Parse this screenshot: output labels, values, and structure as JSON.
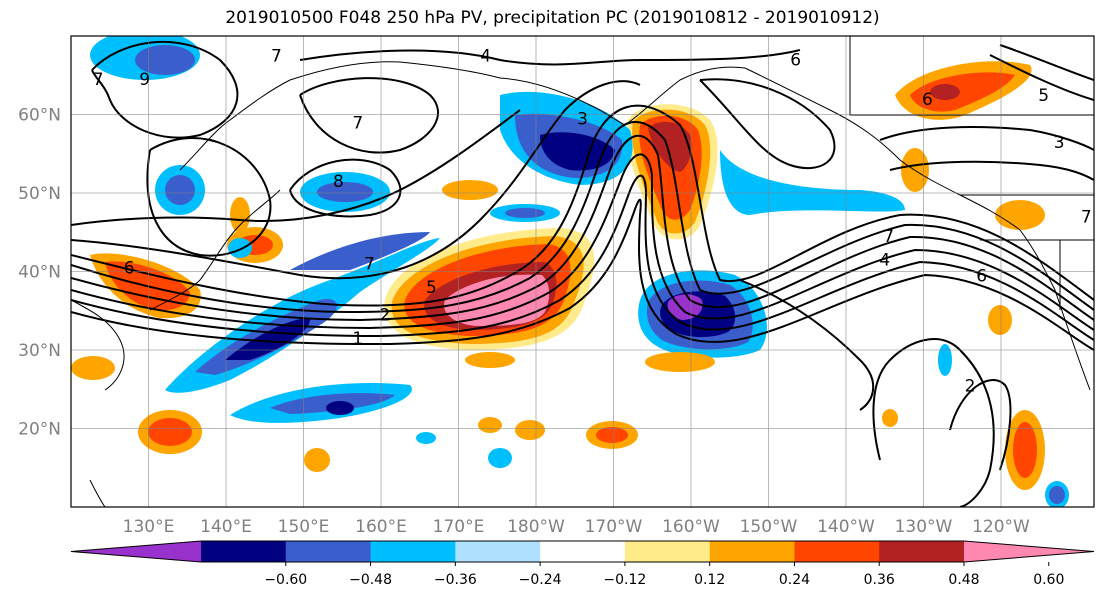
{
  "title": "2019010500 F048 250 hPa PV, precipitation PC (2019010812 - 2019010912)",
  "map": {
    "lon_range": [
      120,
      252
    ],
    "lat_range": [
      10,
      70
    ],
    "lat_ticks": [
      {
        "value": 20,
        "label": "20°N"
      },
      {
        "value": 30,
        "label": "30°N"
      },
      {
        "value": 40,
        "label": "40°N"
      },
      {
        "value": 50,
        "label": "50°N"
      },
      {
        "value": 60,
        "label": "60°N"
      }
    ],
    "lon_ticks": [
      {
        "value": 130,
        "label": "130°E"
      },
      {
        "value": 140,
        "label": "140°E"
      },
      {
        "value": 150,
        "label": "150°E"
      },
      {
        "value": 160,
        "label": "160°E"
      },
      {
        "value": 170,
        "label": "170°E"
      },
      {
        "value": 180,
        "label": "180°W"
      },
      {
        "value": 190,
        "label": "170°W"
      },
      {
        "value": 200,
        "label": "160°W"
      },
      {
        "value": 210,
        "label": "150°W"
      },
      {
        "value": 220,
        "label": "140°W"
      },
      {
        "value": 230,
        "label": "130°W"
      },
      {
        "value": 240,
        "label": "120°W"
      }
    ],
    "grid": true
  },
  "colorbar": {
    "colors": [
      "#9932cc",
      "#000080",
      "#3a5fcd",
      "#00bfff",
      "#b0e2ff",
      "#ffffff",
      "#ffeb8a",
      "#ffa500",
      "#ff4500",
      "#b22222",
      "#ff88b0"
    ],
    "tick_labels": [
      "−0.60",
      "−0.48",
      "−0.36",
      "−0.24",
      "−0.12",
      "0.12",
      "0.24",
      "0.36",
      "0.48",
      "0.60"
    ],
    "extend": "both"
  },
  "contour_labels": [
    {
      "text": "7",
      "lon": 123.5,
      "lat": 64.5
    },
    {
      "text": "9",
      "lon": 129.5,
      "lat": 64.5
    },
    {
      "text": "7",
      "lon": 146.5,
      "lat": 67.5
    },
    {
      "text": "4",
      "lon": 173.5,
      "lat": 67.5
    },
    {
      "text": "6",
      "lon": 213.5,
      "lat": 67
    },
    {
      "text": "6",
      "lon": 230.5,
      "lat": 62
    },
    {
      "text": "5",
      "lon": 245.5,
      "lat": 62.5
    },
    {
      "text": "3",
      "lon": 186,
      "lat": 59.5
    },
    {
      "text": "7",
      "lon": 157,
      "lat": 59
    },
    {
      "text": "8",
      "lon": 154.5,
      "lat": 51.5
    },
    {
      "text": "6",
      "lon": 127.5,
      "lat": 40.5
    },
    {
      "text": "7",
      "lon": 158.5,
      "lat": 41
    },
    {
      "text": "5",
      "lon": 166.5,
      "lat": 38
    },
    {
      "text": "1",
      "lon": 157,
      "lat": 31.5
    },
    {
      "text": "2",
      "lon": 160.5,
      "lat": 34.5
    },
    {
      "text": "7",
      "lon": 225.5,
      "lat": 44.5
    },
    {
      "text": "4",
      "lon": 225,
      "lat": 41.5
    },
    {
      "text": "6",
      "lon": 237.5,
      "lat": 39.5
    },
    {
      "text": "2",
      "lon": 236,
      "lat": 25.5
    },
    {
      "text": "3",
      "lon": 247.5,
      "lat": 56.5
    },
    {
      "text": "7",
      "lon": 251,
      "lat": 47
    }
  ]
}
